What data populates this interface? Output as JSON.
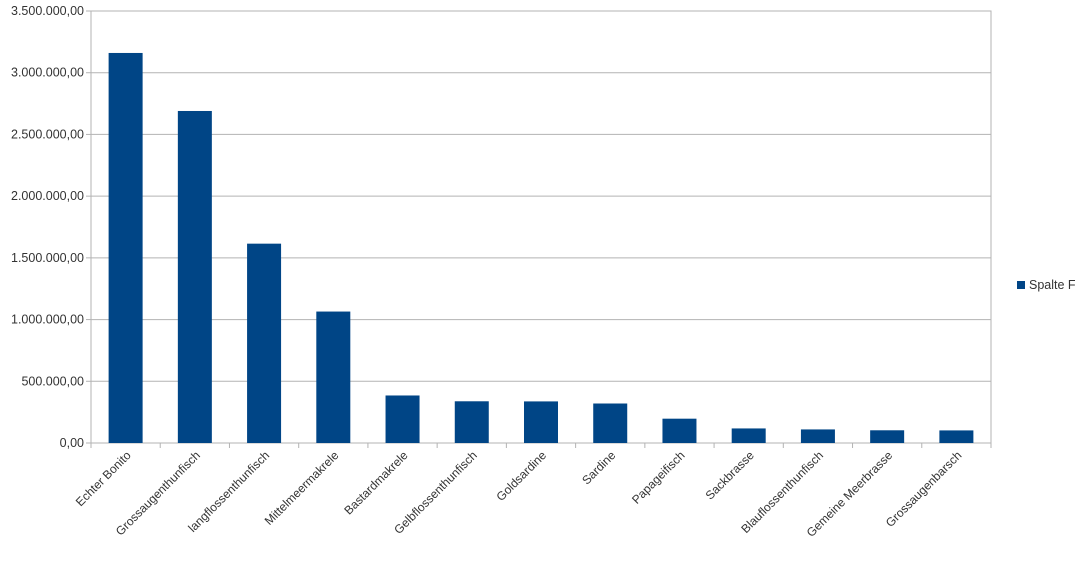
{
  "chart_data": {
    "type": "bar",
    "categories": [
      "Echter Bonito",
      "Grossaugenthunfisch",
      "langflossenthunfisch",
      "Mittelmeermakrele",
      "Bastardmakrele",
      "Gelbflossenthunfisch",
      "Goldsardine",
      "Sardine",
      "Papageifisch",
      "Sackbrasse",
      "Blauflossenthunfisch",
      "Gemeine Meerbrasse",
      "Grossaugenbarsch"
    ],
    "series": [
      {
        "name": "Spalte F",
        "color": "#004586",
        "values": [
          3160000,
          2690000,
          1615000,
          1065000,
          385000,
          338000,
          337000,
          320000,
          197000,
          118000,
          110000,
          103000,
          102000
        ]
      }
    ],
    "y_tick_labels": [
      "0,00",
      "500.000,00",
      "1.000.000,00",
      "1.500.000,00",
      "2.000.000,00",
      "2.500.000,00",
      "3.000.000,00",
      "3.500.000,00"
    ],
    "ylim": [
      0,
      3500000
    ],
    "grid": true,
    "legend_position": "right"
  }
}
